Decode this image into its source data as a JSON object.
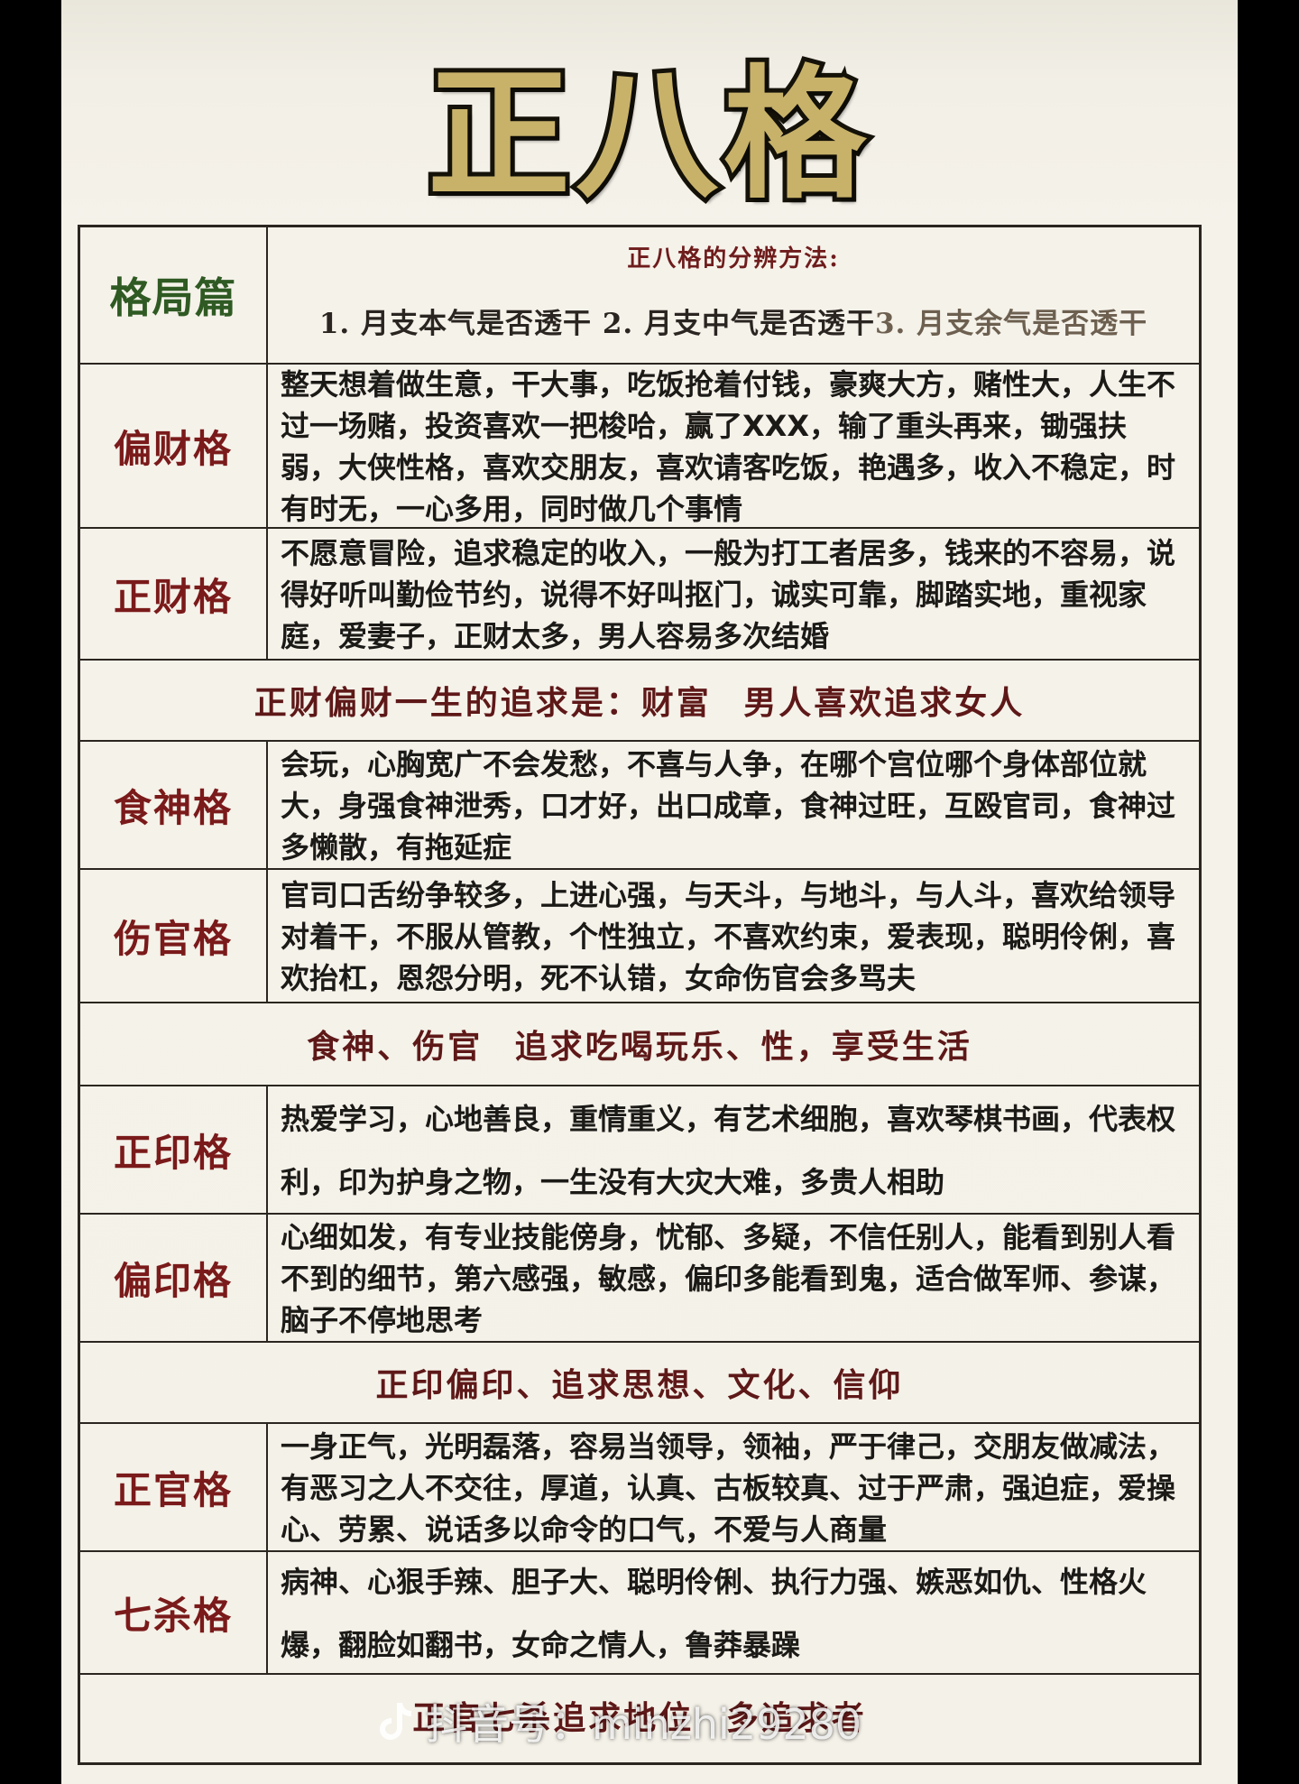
{
  "title": "正八格",
  "header": {
    "label": "格局篇",
    "method_title": "正八格的分辨方法:",
    "steps": [
      "1. 月支本气是否透干",
      "2. 月支中气是否透干",
      "3. 月支余气是否透干"
    ]
  },
  "rows": [
    {
      "label": "偏财格",
      "text": "整天想着做生意，干大事，吃饭抢着付钱，豪爽大方，赌性大，人生不过一场赌，投资喜欢一把梭哈，赢了XXX，输了重头再来，锄强扶弱，大侠性格，喜欢交朋友，喜欢请客吃饭，艳遇多，收入不稳定，时有时无，一心多用，同时做几个事情"
    },
    {
      "label": "正财格",
      "text": "不愿意冒险，追求稳定的收入，一般为打工者居多，钱来的不容易，说得好听叫勤俭节约，说得不好叫抠门，诚实可靠，脚踏实地，重视家庭，爱妻子，正财太多，男人容易多次结婚"
    },
    {
      "summary": "正财偏财一生的追求是：财富 男人喜欢追求女人"
    },
    {
      "label": "食神格",
      "text": "会玩，心胸宽广不会发愁，不喜与人争，在哪个宫位哪个身体部位就大，身强食神泄秀，口才好，出口成章，食神过旺，互殴官司，食神过多懒散，有拖延症"
    },
    {
      "label": "伤官格",
      "text": "官司口舌纷争较多，上进心强，与天斗，与地斗，与人斗，喜欢给领导对着干，不服从管教，个性独立，不喜欢约束，爱表现，聪明伶俐，喜欢抬杠，恩怨分明，死不认错，女命伤官会多骂夫"
    },
    {
      "summary": "食神、伤官 追求吃喝玩乐、性，享受生活"
    },
    {
      "label": "正印格",
      "text": "热爱学习，心地善良，重情重义，有艺术细胞，喜欢琴棋书画，代表权利，印为护身之物，一生没有大灾大难，多贵人相助"
    },
    {
      "label": "偏印格",
      "text": "心细如发，有专业技能傍身，忧郁、多疑，不信任别人，能看到别人看不到的细节，第六感强，敏感，偏印多能看到鬼，适合做军师、参谋，脑子不停地思考"
    },
    {
      "summary": "正印偏印、追求思想、文化、信仰"
    },
    {
      "label": "正官格",
      "text": "一身正气，光明磊落，容易当领导，领袖，严于律己，交朋友做减法，有恶习之人不交往，厚道，认真、古板较真、过于严肃，强迫症，爱操心、劳累、说话多以命令的口气，不爱与人商量"
    },
    {
      "label": "七杀格",
      "text": "病神、心狠手辣、胆子大、聪明伶俐、执行力强、嫉恶如仇、性格火爆，翻脸如翻书，女命之情人，鲁莽暴躁"
    },
    {
      "summary": "正官七杀追求地位 多追求者"
    }
  ],
  "watermark": "抖音号：minzhi29280",
  "colors": {
    "title_gold": "#c8b26a",
    "label_red": "#7a1a1a",
    "label_green": "#2f5a23",
    "paper": "#f4f1e8"
  }
}
